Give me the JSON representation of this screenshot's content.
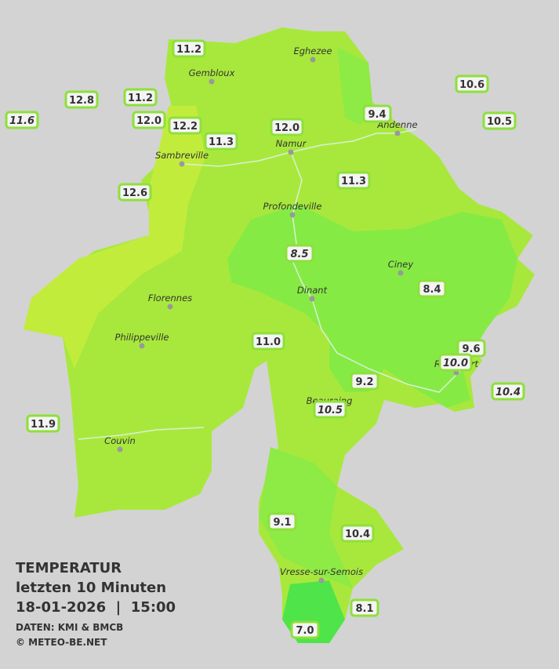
{
  "title": {
    "heading": "TEMPERATUR",
    "subtitle": "letzten 10 Minuten",
    "timestamp": "18-01-2026  |  15:00",
    "source": "DATEN: KMI & BMCB",
    "copyright": "© METEO-BE.NET"
  },
  "cities": [
    {
      "name": "Eghezee"
    },
    {
      "name": "Gembloux"
    },
    {
      "name": "Andenne"
    },
    {
      "name": "Namur"
    },
    {
      "name": "Sambreville"
    },
    {
      "name": "Profondeville"
    },
    {
      "name": "Ciney"
    },
    {
      "name": "Dinant"
    },
    {
      "name": "Florennes"
    },
    {
      "name": "Philippeville"
    },
    {
      "name": "Couvin"
    },
    {
      "name": "Vresse-sur-Semois"
    },
    {
      "name": "Beauraing"
    },
    {
      "name": "Rochefort"
    }
  ],
  "stations": [
    {
      "reading": "11.2",
      "italic": false
    },
    {
      "reading": "12.8",
      "italic": false
    },
    {
      "reading": "11.2",
      "italic": false
    },
    {
      "reading": "11.6",
      "italic": true
    },
    {
      "reading": "12.0",
      "italic": false
    },
    {
      "reading": "12.2",
      "italic": false
    },
    {
      "reading": "11.3",
      "italic": false
    },
    {
      "reading": "12.0",
      "italic": false
    },
    {
      "reading": "9.4",
      "italic": false
    },
    {
      "reading": "10.6",
      "italic": false
    },
    {
      "reading": "10.5",
      "italic": false
    },
    {
      "reading": "12.6",
      "italic": false
    },
    {
      "reading": "11.3",
      "italic": false
    },
    {
      "reading": "8.5",
      "italic": true
    },
    {
      "reading": "8.4",
      "italic": false
    },
    {
      "reading": "11.0",
      "italic": false
    },
    {
      "reading": "9.6",
      "italic": false
    },
    {
      "reading": "10.0",
      "italic": true
    },
    {
      "reading": "9.2",
      "italic": false
    },
    {
      "reading": "10.4",
      "italic": true
    },
    {
      "reading": "10.5",
      "italic": true
    },
    {
      "reading": "11.9",
      "italic": false
    },
    {
      "reading": "9.1",
      "italic": false
    },
    {
      "reading": "10.4",
      "italic": false
    },
    {
      "reading": "8.1",
      "italic": false
    },
    {
      "reading": "7.0",
      "italic": false
    }
  ]
}
